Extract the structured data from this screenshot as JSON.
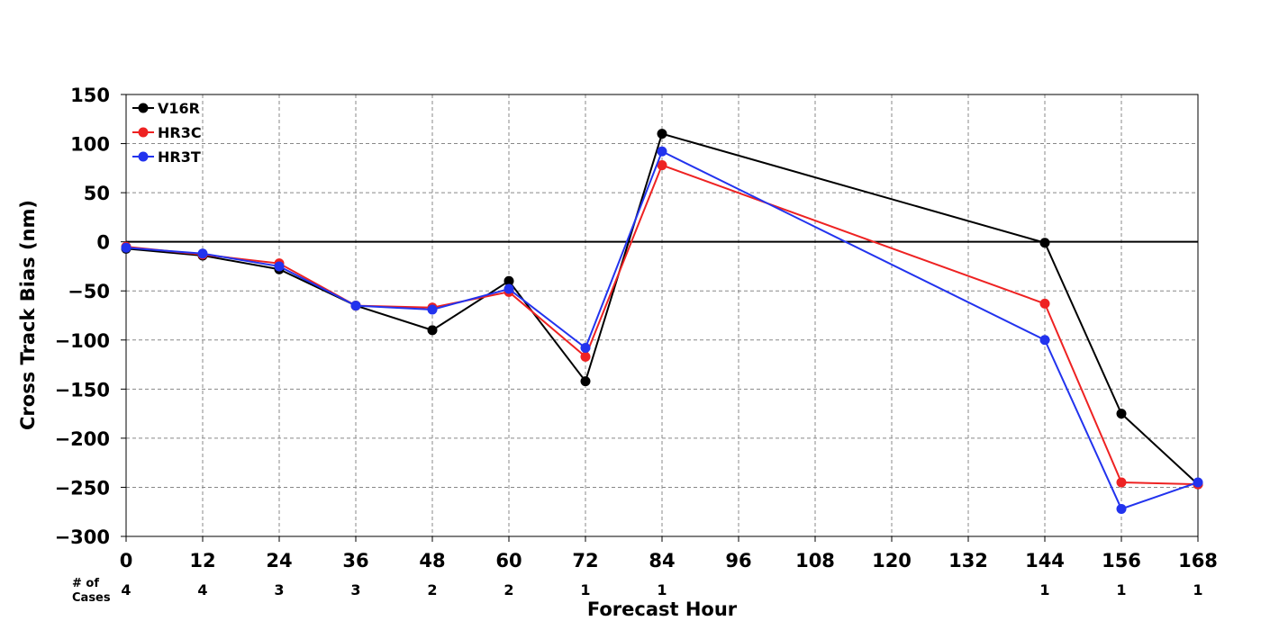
{
  "chart_data": {
    "type": "line",
    "xlabel": "Forecast Hour",
    "ylabel": "Cross Track Bias (nm)",
    "xlim": [
      0,
      168
    ],
    "ylim": [
      -300,
      150
    ],
    "x_ticks": [
      "0",
      "12",
      "24",
      "36",
      "48",
      "60",
      "72",
      "84",
      "96",
      "108",
      "120",
      "132",
      "144",
      "156",
      "168"
    ],
    "y_ticks": [
      "150",
      "100",
      "50",
      "0",
      "−50",
      "−100",
      "−150",
      "−200",
      "−250",
      "−300"
    ],
    "grid": true,
    "zero_line": true,
    "legend_position": "top-left",
    "x": [
      0,
      12,
      24,
      36,
      48,
      60,
      72,
      84,
      144,
      156,
      168
    ],
    "series": [
      {
        "name": "V16R",
        "color": "#000000",
        "values": [
          -7,
          -14,
          -28,
          -65,
          -90,
          -40,
          -142,
          110,
          -1,
          -175,
          -247
        ]
      },
      {
        "name": "HR3C",
        "color": "#ee2222",
        "values": [
          -5,
          -13,
          -22,
          -65,
          -67,
          -51,
          -117,
          78,
          -63,
          -245,
          -247
        ]
      },
      {
        "name": "HR3T",
        "color": "#2233ee",
        "values": [
          -6,
          -12,
          -25,
          -65,
          -69,
          -48,
          -108,
          92,
          -100,
          -272,
          -245
        ]
      }
    ],
    "cases": {
      "label_line1": "# of",
      "label_line2": "Cases",
      "x": [
        0,
        12,
        24,
        36,
        48,
        60,
        72,
        84,
        144,
        156,
        168
      ],
      "values": [
        "4",
        "4",
        "3",
        "3",
        "2",
        "2",
        "1",
        "1",
        "1",
        "1",
        "1"
      ]
    }
  }
}
